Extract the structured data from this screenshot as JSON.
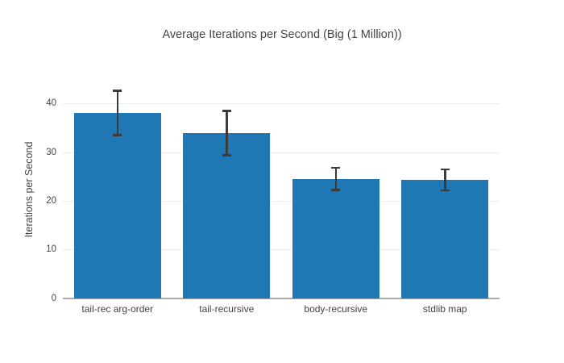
{
  "chart_data": {
    "type": "bar",
    "title": "Average Iterations per Second (Big (1 Million))",
    "ylabel": "Iterations per Second",
    "xlabel": "",
    "categories": [
      "tail-rec arg-order",
      "tail-recursive",
      "body-recursive",
      "stdlib map"
    ],
    "values": [
      38.2,
      34.0,
      24.6,
      24.4
    ],
    "error_bars": [
      4.6,
      4.6,
      2.3,
      2.2
    ],
    "yticks": [
      0,
      10,
      20,
      30,
      40
    ],
    "ylim": [
      0,
      44.8
    ],
    "grid": true,
    "legend": "none",
    "bar_color": "#1f77b4",
    "error_color": "#3b3b3b",
    "grid_color": "#ececec",
    "axis_line_color": "#ababab",
    "text_color": "#444444",
    "background": "#ffffff"
  }
}
